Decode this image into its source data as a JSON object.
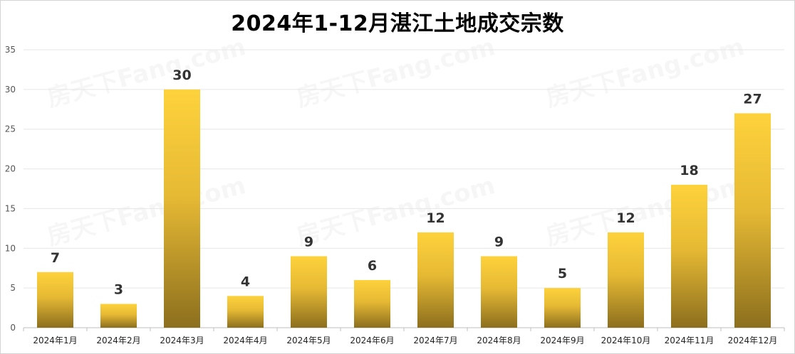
{
  "chart_data": {
    "type": "bar",
    "title": "2024年1-12月湛江土地成交宗数",
    "categories": [
      "2024年1月",
      "2024年2月",
      "2024年3月",
      "2024年4月",
      "2024年5月",
      "2024年6月",
      "2024年7月",
      "2024年8月",
      "2024年9月",
      "2024年10月",
      "2024年11月",
      "2024年12月"
    ],
    "values": [
      7,
      3,
      30,
      4,
      9,
      6,
      12,
      9,
      5,
      12,
      18,
      27
    ],
    "ylim": [
      0,
      35
    ],
    "yticks": [
      0,
      5,
      10,
      15,
      20,
      25,
      30,
      35
    ],
    "grid": true,
    "bar_color_top": "#fdd23c",
    "bar_color_bottom": "#8c6f1e"
  },
  "watermark": "房天下Fang.com"
}
